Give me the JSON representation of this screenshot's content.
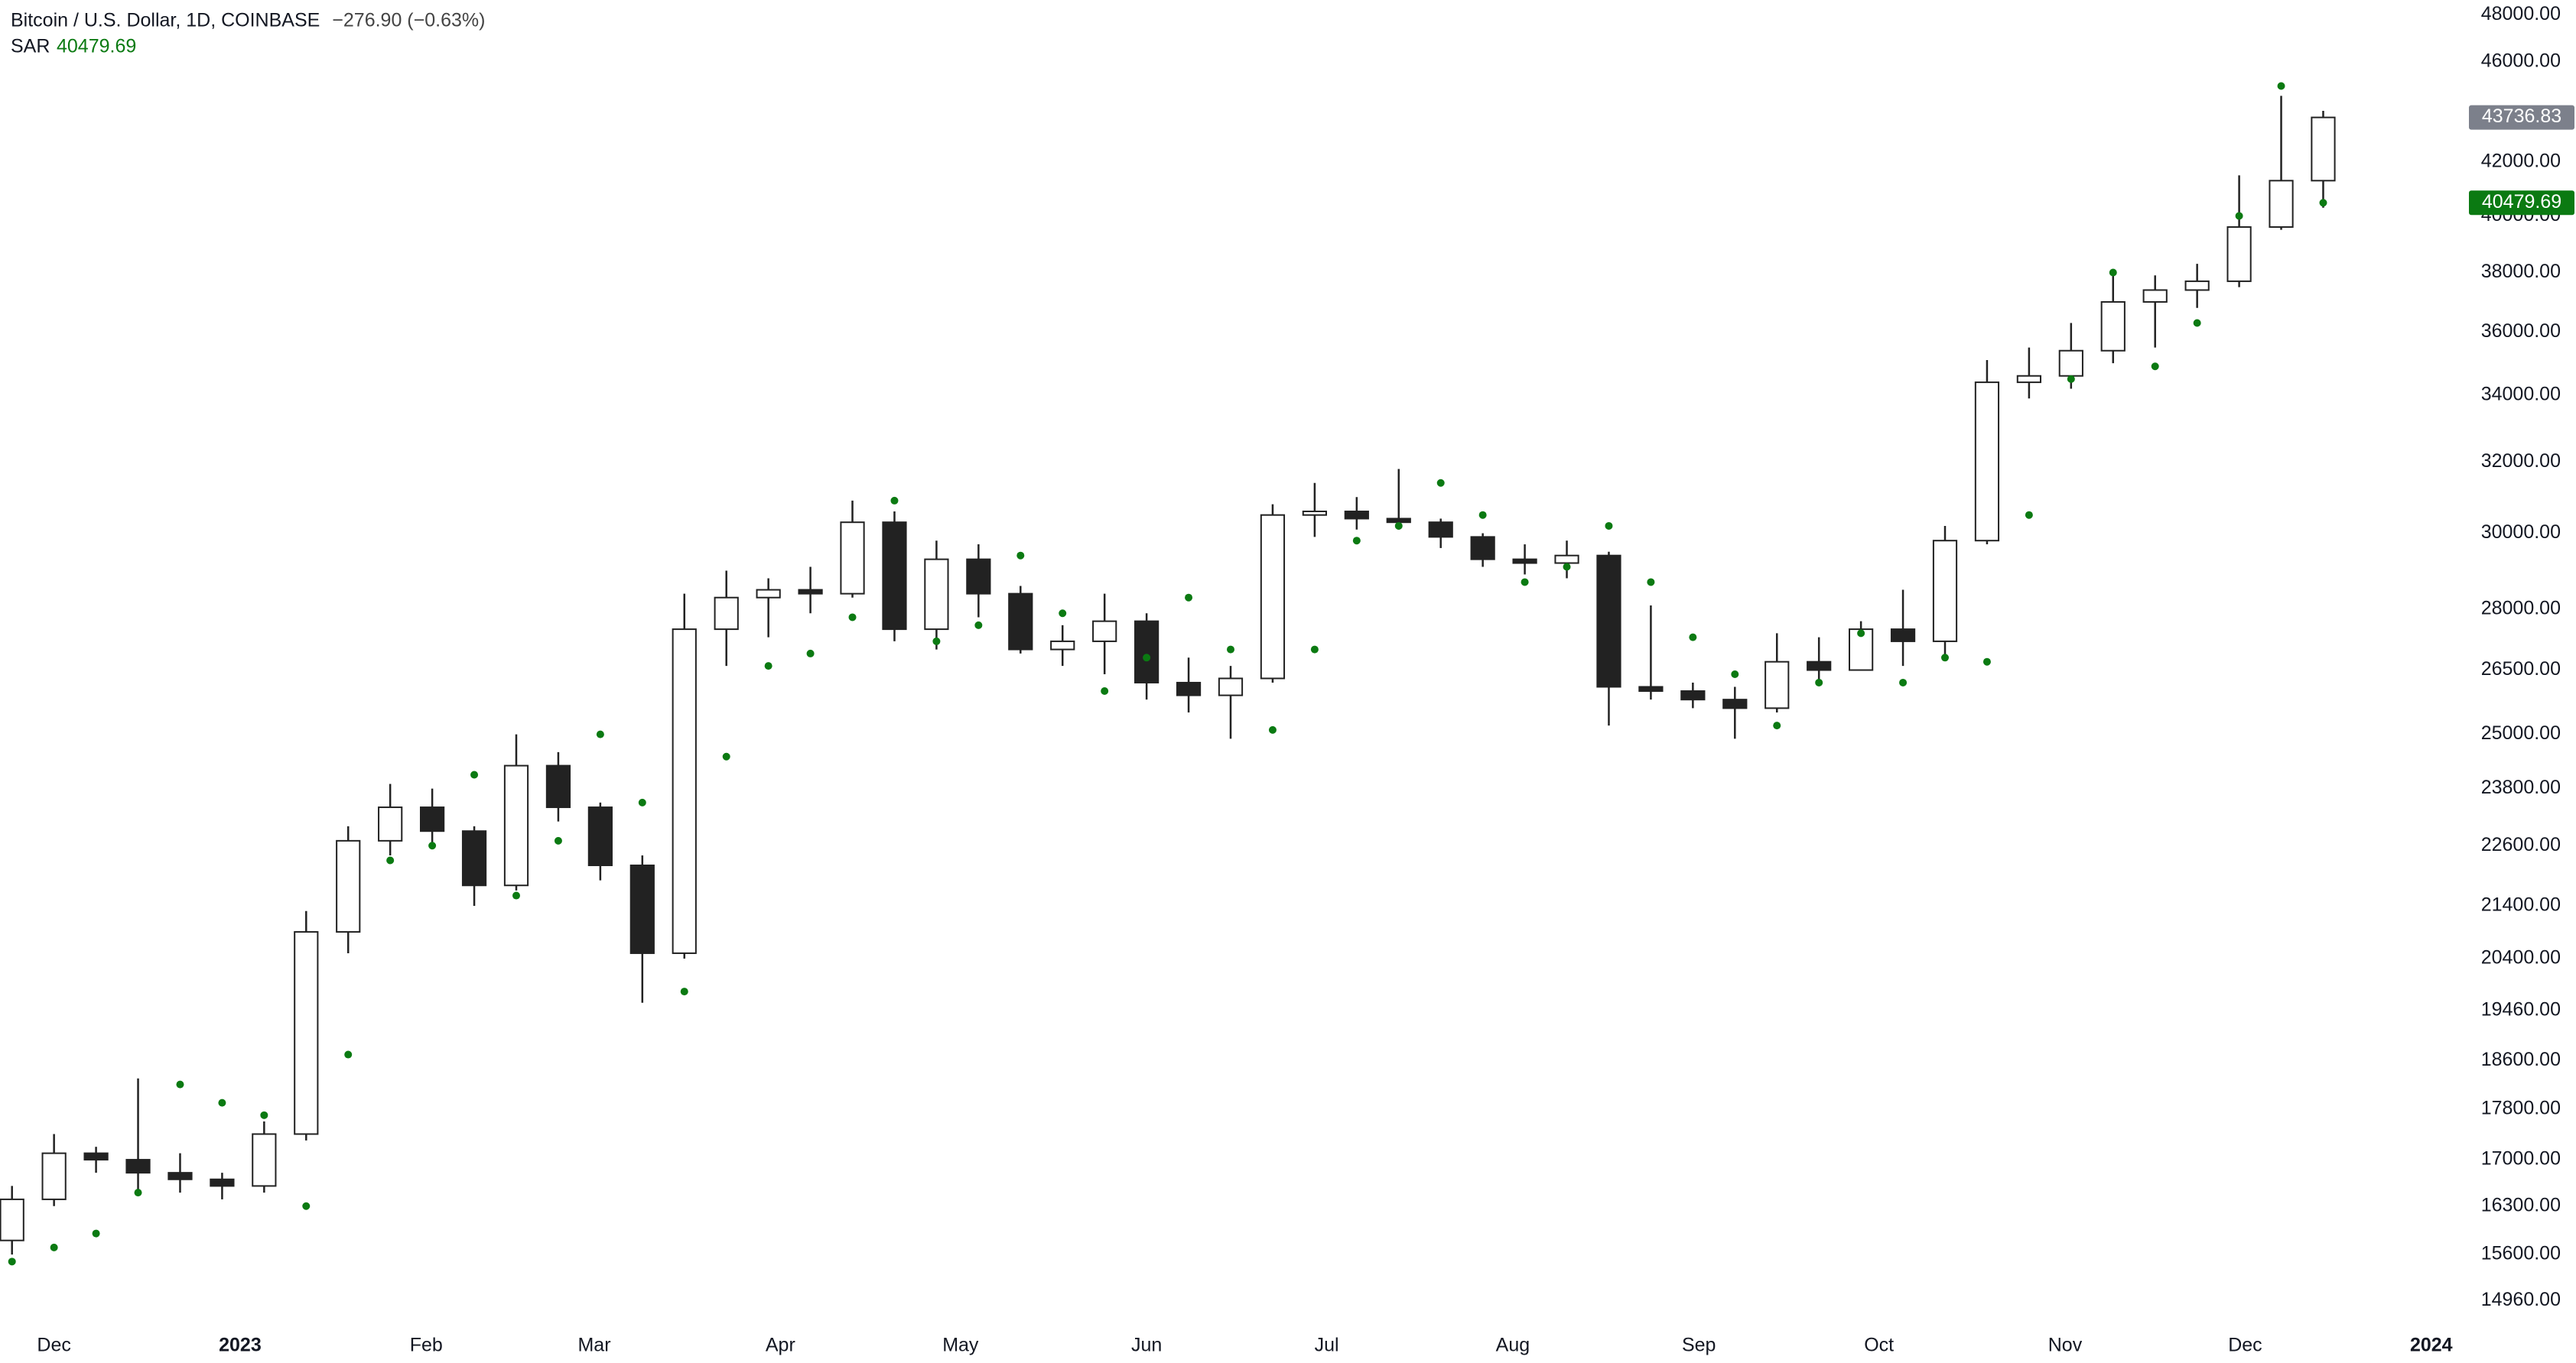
{
  "chart_data": {
    "type": "candlestick",
    "title": "Bitcoin / U.S. Dollar, 1D, COINBASE",
    "change": "−276.90 (−0.63%)",
    "log_scale": true,
    "xlim": [
      0,
      410
    ],
    "ylim": [
      14790,
      48650
    ],
    "xticks": [
      {
        "value": 9,
        "label": "Dec"
      },
      {
        "value": 40,
        "label": "2023"
      },
      {
        "value": 71,
        "label": "Feb"
      },
      {
        "value": 99,
        "label": "Mar"
      },
      {
        "value": 130,
        "label": "Apr"
      },
      {
        "value": 160,
        "label": "May"
      },
      {
        "value": 191,
        "label": "Jun"
      },
      {
        "value": 221,
        "label": "Jul"
      },
      {
        "value": 252,
        "label": "Aug"
      },
      {
        "value": 283,
        "label": "Sep"
      },
      {
        "value": 313,
        "label": "Oct"
      },
      {
        "value": 344,
        "label": "Nov"
      },
      {
        "value": 374,
        "label": "Dec"
      },
      {
        "value": 405,
        "label": "2024"
      }
    ],
    "yticks": [
      {
        "value": 48000,
        "label": "48000.00"
      },
      {
        "value": 46000,
        "label": "46000.00"
      },
      {
        "value": 42000,
        "label": "42000.00"
      },
      {
        "value": 40000,
        "label": "40000.00"
      },
      {
        "value": 38000,
        "label": "38000.00"
      },
      {
        "value": 36000,
        "label": "36000.00"
      },
      {
        "value": 34000,
        "label": "34000.00"
      },
      {
        "value": 32000,
        "label": "32000.00"
      },
      {
        "value": 30000,
        "label": "30000.00"
      },
      {
        "value": 28000,
        "label": "28000.00"
      },
      {
        "value": 26500,
        "label": "26500.00"
      },
      {
        "value": 25000,
        "label": "25000.00"
      },
      {
        "value": 23800,
        "label": "23800.00"
      },
      {
        "value": 22600,
        "label": "22600.00"
      },
      {
        "value": 21400,
        "label": "21400.00"
      },
      {
        "value": 20400,
        "label": "20400.00"
      },
      {
        "value": 19460,
        "label": "19460.00"
      },
      {
        "value": 18600,
        "label": "18600.00"
      },
      {
        "value": 17800,
        "label": "17800.00"
      },
      {
        "value": 17000,
        "label": "17000.00"
      },
      {
        "value": 16300,
        "label": "16300.00"
      },
      {
        "value": 15600,
        "label": "15600.00"
      },
      {
        "value": 14960,
        "label": "14960.00"
      }
    ],
    "up_color": "#ffffff",
    "down_color": "#222222",
    "wick_color": "#222222",
    "x": [
      2,
      9,
      16,
      23,
      30,
      37,
      44,
      51,
      58,
      65,
      72,
      79,
      86,
      93,
      100,
      107,
      114,
      121,
      128,
      135,
      142,
      149,
      156,
      163,
      170,
      177,
      184,
      191,
      198,
      205,
      212,
      219,
      226,
      233,
      240,
      247,
      254,
      261,
      268,
      275,
      282,
      289,
      296,
      303,
      310,
      317,
      324,
      331,
      338,
      345,
      352,
      359,
      366,
      373,
      380,
      387
    ],
    "open": [
      15800,
      16400,
      17100,
      17000,
      16800,
      16700,
      16600,
      17400,
      20900,
      22700,
      23400,
      22900,
      21800,
      24300,
      23400,
      22200,
      20500,
      27500,
      28300,
      28500,
      28400,
      30300,
      27500,
      29300,
      28400,
      27000,
      27200,
      27700,
      26200,
      25900,
      26300,
      30500,
      30600,
      30400,
      30300,
      29900,
      29300,
      29200,
      29400,
      26100,
      26000,
      25800,
      25600,
      26700,
      26500,
      27500,
      27200,
      29800,
      34400,
      34600,
      35400,
      37000,
      37400,
      37700,
      39600,
      41300
    ],
    "high": [
      16600,
      17400,
      17200,
      18300,
      17100,
      16800,
      17600,
      21300,
      23000,
      23900,
      23800,
      23000,
      25000,
      24600,
      23500,
      22400,
      28400,
      29000,
      28800,
      29100,
      30900,
      30600,
      29800,
      29700,
      28600,
      27600,
      28400,
      27900,
      26800,
      26600,
      30800,
      31400,
      31000,
      31800,
      30400,
      30000,
      29700,
      29800,
      29500,
      28100,
      26200,
      26100,
      27400,
      27300,
      27700,
      28500,
      30200,
      35100,
      35500,
      36300,
      38000,
      37900,
      38300,
      41500,
      44600,
      44000
    ],
    "low": [
      15600,
      16300,
      16800,
      16500,
      16500,
      16400,
      16500,
      17300,
      20500,
      22400,
      22600,
      21400,
      21700,
      23100,
      21900,
      19600,
      20400,
      26600,
      27300,
      27900,
      28300,
      27200,
      27000,
      27800,
      26900,
      26600,
      26400,
      25800,
      25500,
      24900,
      26200,
      29900,
      30100,
      30100,
      29600,
      29100,
      28900,
      28800,
      25200,
      25800,
      25600,
      24900,
      25500,
      26200,
      26500,
      26600,
      26800,
      29700,
      33900,
      34200,
      35000,
      35500,
      36800,
      37500,
      39500,
      40300
    ],
    "close": [
      16400,
      17100,
      17000,
      16800,
      16700,
      16600,
      17400,
      20900,
      22700,
      23400,
      22900,
      21800,
      24300,
      23400,
      22200,
      20500,
      27500,
      28300,
      28500,
      28400,
      30300,
      27500,
      29300,
      28400,
      27000,
      27200,
      27700,
      26200,
      25900,
      26300,
      30500,
      30600,
      30400,
      30300,
      29900,
      29300,
      29200,
      29400,
      26100,
      26000,
      25800,
      25600,
      26700,
      26500,
      27500,
      27200,
      29800,
      34400,
      34600,
      35400,
      37000,
      37400,
      37700,
      39600,
      41300,
      43736.83
    ],
    "series": [
      {
        "name": "SAR",
        "color": "#0b7a12",
        "values": [
          15500,
          15700,
          15900,
          16500,
          18200,
          17900,
          17700,
          16300,
          18700,
          22300,
          22600,
          24100,
          21600,
          22700,
          25000,
          23500,
          19800,
          24500,
          26600,
          26900,
          27800,
          30900,
          27200,
          27600,
          29400,
          27900,
          26000,
          26800,
          28300,
          27000,
          25100,
          27000,
          29800,
          30200,
          31400,
          30500,
          28700,
          29100,
          30200,
          28700,
          27300,
          26400,
          25200,
          26200,
          27400,
          26200,
          26800,
          26700,
          30500,
          34500,
          38000,
          34900,
          36300,
          40000,
          45000,
          40479.69
        ]
      }
    ]
  }
}
